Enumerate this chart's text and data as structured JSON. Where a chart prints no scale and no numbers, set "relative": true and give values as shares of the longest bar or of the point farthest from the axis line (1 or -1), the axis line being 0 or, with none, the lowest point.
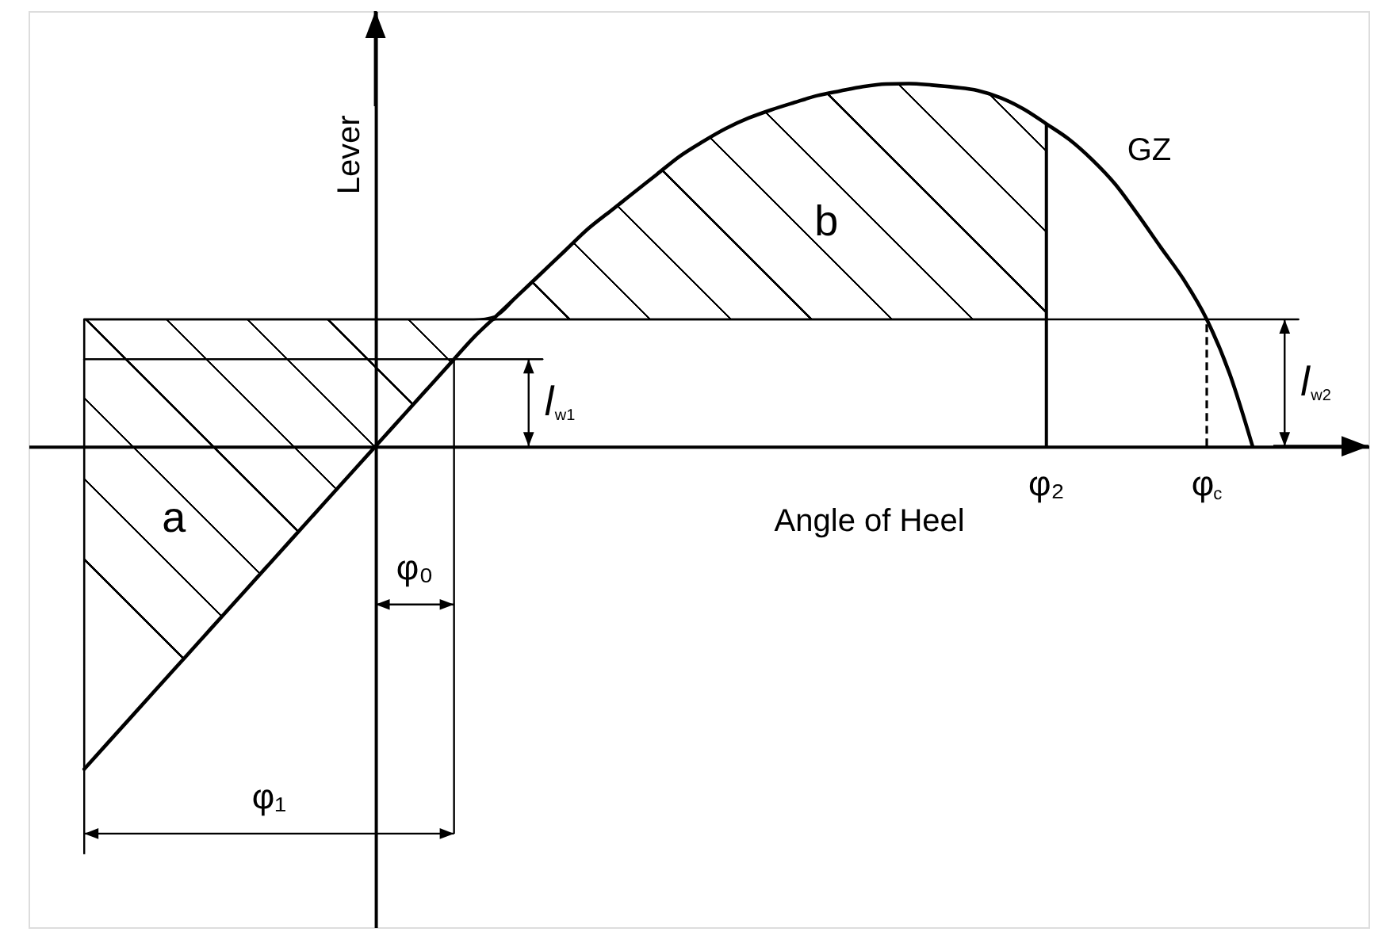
{
  "chart_data": {
    "type": "line",
    "relative": true,
    "xlabel": "Angle of Heel",
    "ylabel": "Lever",
    "categories": [
      null,
      null,
      null,
      null,
      null,
      null,
      null,
      null,
      null,
      null,
      null,
      null,
      null,
      null,
      null,
      null,
      null,
      null,
      null,
      null,
      null,
      null,
      null,
      null,
      null,
      null,
      null,
      null,
      null,
      null,
      null,
      null,
      null,
      null,
      null,
      null,
      null,
      null,
      null,
      null,
      null,
      null,
      "φ₂",
      null,
      null,
      null,
      null,
      null,
      null,
      "φ$_{c}$",
      null,
      null,
      null,
      null
    ],
    "series": [
      {
        "name": "GZ",
        "color": "#000000",
        "values": [
          -0.89,
          -0.82,
          -0.75,
          -0.68,
          -0.61,
          -0.54,
          -0.47,
          -0.4,
          -0.33,
          -0.26,
          -0.19,
          -0.12,
          -0.05,
          0.02,
          0.09,
          0.16,
          0.23,
          0.3,
          0.36,
          0.42,
          0.48,
          0.54,
          0.6,
          0.65,
          0.7,
          0.75,
          0.8,
          0.84,
          0.876,
          0.905,
          0.928,
          0.948,
          0.967,
          0.98,
          0.992,
          0.999,
          1.0,
          0.996,
          0.99,
          0.981,
          0.961,
          0.93,
          0.889,
          0.846,
          0.79,
          0.723,
          0.638,
          0.548,
          0.459,
          0.35,
          0.2,
          0,
          null,
          null
        ]
      },
      {
        "color": "#000000",
        "values": [
          0.24,
          0.24,
          0.24,
          0.24,
          0.24,
          0.24,
          0.24,
          0.24,
          0.24,
          0.24,
          0.24,
          0.24,
          0.24,
          0.24,
          0.24,
          0.24,
          0.24,
          0.24,
          0.24,
          0.24,
          0.24,
          null,
          null,
          null,
          null,
          null,
          null,
          null,
          null,
          null,
          null,
          null,
          null,
          null,
          null,
          null,
          null,
          null,
          null,
          null,
          null,
          null,
          null,
          null,
          null,
          null,
          null,
          null,
          null,
          null,
          null,
          null,
          null,
          null
        ]
      },
      {
        "color": "#000000",
        "values": [
          0.35,
          0.35,
          0.35,
          0.35,
          0.35,
          0.35,
          0.35,
          0.35,
          0.35,
          0.35,
          0.35,
          0.35,
          0.35,
          0.35,
          0.35,
          0.35,
          0.35,
          0.35,
          0.35,
          0.35,
          0.35,
          0.35,
          0.35,
          0.35,
          0.35,
          0.35,
          0.35,
          0.35,
          0.35,
          0.35,
          0.35,
          0.35,
          0.35,
          0.35,
          0.35,
          0.35,
          0.35,
          0.35,
          0.35,
          0.35,
          0.35,
          0.35,
          0.35,
          0.35,
          0.35,
          0.35,
          0.35,
          0.35,
          0.35,
          0.35,
          0.35,
          0.35,
          0.35,
          0.35
        ],
        "lower": [
          -0.89,
          -0.82,
          -0.75,
          -0.68,
          -0.61,
          -0.54,
          -0.47,
          -0.4,
          -0.33,
          -0.26,
          -0.19,
          -0.12,
          -0.05,
          0.02,
          0.09,
          0.16,
          0.23,
          0.3,
          0.35,
          0.35,
          0.35,
          0.35,
          0.35,
          0.35,
          0.35,
          0.35,
          0.35,
          0.35,
          0.35,
          0.35,
          0.35,
          0.35,
          0.35,
          0.35,
          0.35,
          0.35,
          0.35,
          0.35,
          0.35,
          0.35,
          0.35,
          0.35,
          0.35,
          null,
          null,
          null,
          null,
          null,
          null,
          null,
          null,
          null,
          null,
          null
        ],
        "upper": [
          0.35,
          0.35,
          0.35,
          0.35,
          0.35,
          0.35,
          0.35,
          0.35,
          0.35,
          0.35,
          0.35,
          0.35,
          0.35,
          0.35,
          0.35,
          0.35,
          0.35,
          0.35,
          0.36,
          0.42,
          0.48,
          0.54,
          0.6,
          0.65,
          0.7,
          0.75,
          0.8,
          0.84,
          0.876,
          0.905,
          0.928,
          0.948,
          0.967,
          0.98,
          0.992,
          0.999,
          1.0,
          0.996,
          0.99,
          0.981,
          0.961,
          0.93,
          0.889,
          null,
          null,
          null,
          null,
          null,
          null,
          null,
          null,
          null,
          null,
          null
        ]
      }
    ],
    "ref_lines": [
      {
        "axis": "x",
        "value": "φ₂"
      },
      {
        "axis": "x",
        "value": "φ$_{c}$",
        "line_style": "dashed"
      }
    ],
    "annotations": [
      "a",
      "b",
      "φ₀",
      "φ₁",
      "l$_{w1}$",
      "l$_{w2}$"
    ]
  }
}
